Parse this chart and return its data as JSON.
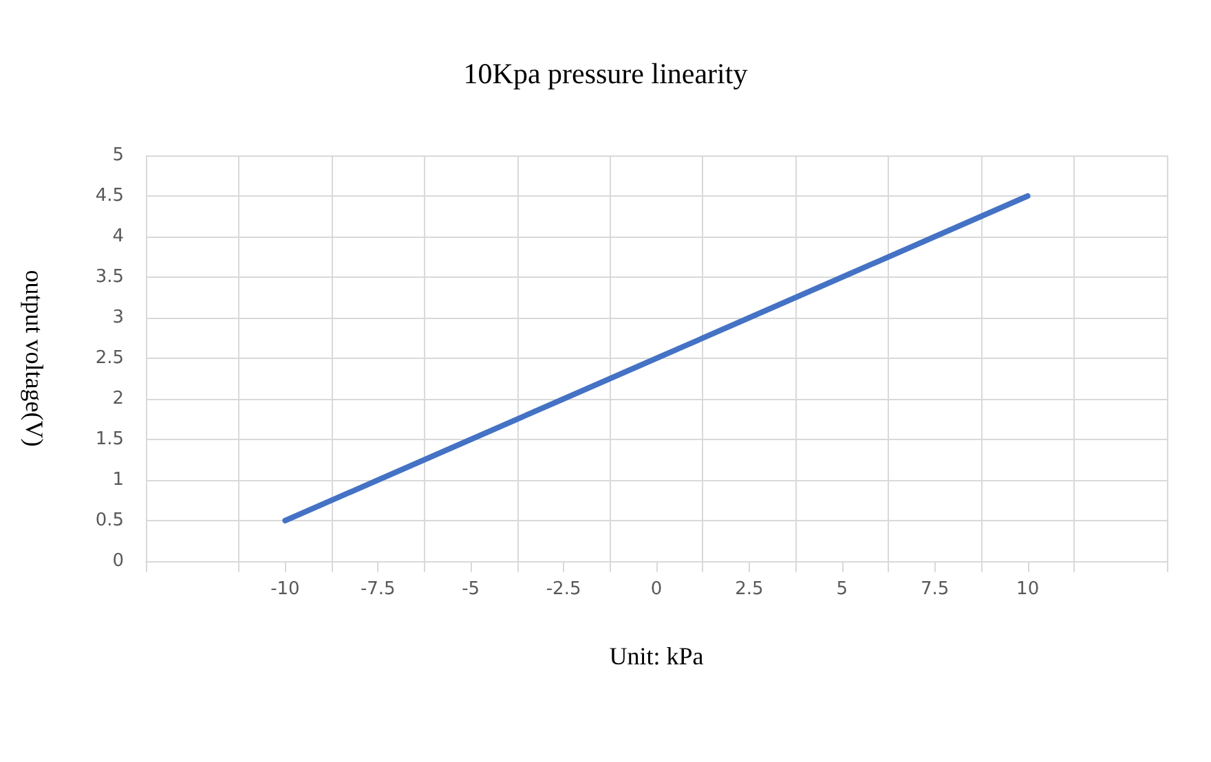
{
  "chart_data": {
    "type": "line",
    "title": "10Kpa pressure linearity",
    "xlabel": "Unit: kPa",
    "ylabel": "output voltage(V)",
    "x": [
      -10,
      -7.5,
      -5,
      -2.5,
      0,
      2.5,
      5,
      7.5,
      10
    ],
    "series": [
      {
        "color": "#4472c4",
        "values": [
          0.5,
          1,
          1.5,
          2,
          2.5,
          3,
          3.5,
          4,
          4.5
        ]
      }
    ],
    "xlim": [
      -13.75,
      13.75
    ],
    "xticks": [
      {
        "value": -13.75,
        "label": null
      },
      {
        "value": -11.25,
        "label": null
      },
      -10,
      {
        "value": -8.75,
        "label": null
      },
      -7.5,
      {
        "value": -6.25,
        "label": null
      },
      -5,
      {
        "value": -3.75,
        "label": null
      },
      -2.5,
      {
        "value": -1.25,
        "label": null
      },
      0,
      {
        "value": 1.25,
        "label": null
      },
      2.5,
      {
        "value": 3.75,
        "label": null
      },
      5,
      {
        "value": 6.25,
        "label": null
      },
      7.5,
      {
        "value": 8.75,
        "label": null
      },
      10,
      {
        "value": 11.25,
        "label": null
      },
      {
        "value": 13.75,
        "label": null
      }
    ],
    "ylim": [
      0,
      5
    ],
    "yticks": [
      0,
      0.5,
      1,
      1.5,
      2,
      2.5,
      3,
      3.5,
      4,
      4.5,
      5
    ],
    "grid": true,
    "marker": "none",
    "line_style": "solid"
  }
}
